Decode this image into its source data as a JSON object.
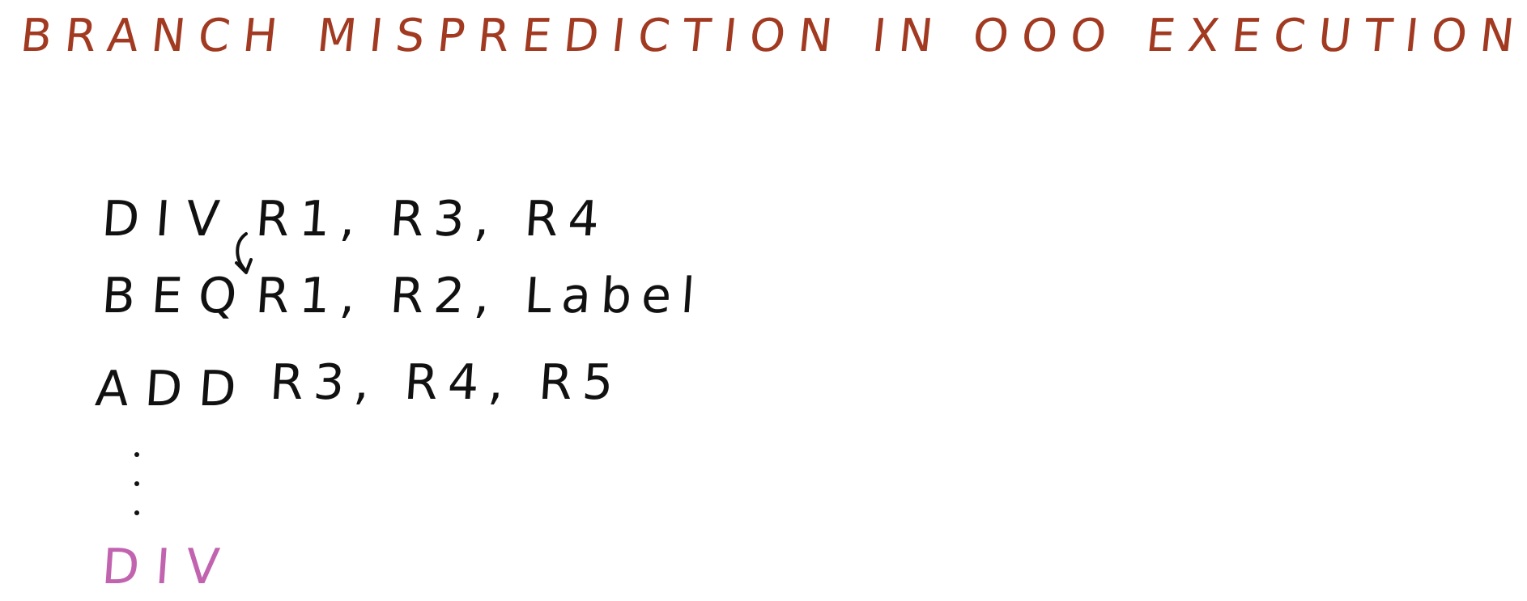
{
  "title": "BRANCH MISPREDICTION IN OOO EXECUTION",
  "instructions": [
    {
      "op": "DIV",
      "args": "R1, R3, R4"
    },
    {
      "op": "BEQ",
      "args": "R1, R2, Label"
    },
    {
      "op": "ADD",
      "args": "R3, R4, R5"
    }
  ],
  "last_instruction": {
    "op": "DIV"
  },
  "colors": {
    "title": "#a23a22",
    "ink": "#111111",
    "highlight": "#c263b0"
  }
}
